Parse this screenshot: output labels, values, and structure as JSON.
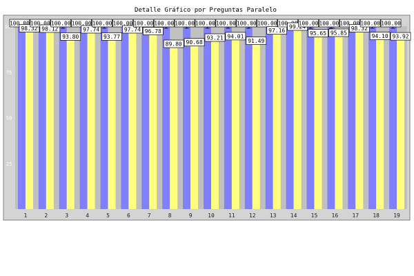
{
  "chart_data": {
    "type": "bar",
    "title": "Detalle Gráfico por Preguntas Paralelo",
    "categories": [
      "1",
      "2",
      "3",
      "4",
      "5",
      "6",
      "7",
      "8",
      "9",
      "10",
      "11",
      "12",
      "13",
      "14",
      "15",
      "16",
      "17",
      "18",
      "19"
    ],
    "series": [
      {
        "values": [
          100,
          100,
          100,
          100,
          100,
          100,
          100,
          100,
          100,
          100,
          100,
          100,
          100,
          100,
          100,
          100,
          100,
          100,
          100
        ]
      },
      {
        "values": [
          98.32,
          98.12,
          93.8,
          97.74,
          93.77,
          97.74,
          96.78,
          89.8,
          90.68,
          93.21,
          94.01,
          91.49,
          97.16,
          99.24,
          95.65,
          95.85,
          98.32,
          94.1,
          93.92
        ]
      }
    ],
    "ylim": [
      0,
      100
    ],
    "yticks": [
      25,
      50,
      75,
      100
    ],
    "colors": {
      "series1": "#8080ff",
      "series2": "#ffff80",
      "plot_background": "#c0c0c0",
      "frame_background": "#d4d4d4",
      "label_box": "#ffffff",
      "tick_label_dim": "#ffffff",
      "tick_label_normal": "#222222"
    },
    "dim_tick_labels": [
      "13",
      "14",
      "18",
      "19"
    ],
    "grid": false
  }
}
